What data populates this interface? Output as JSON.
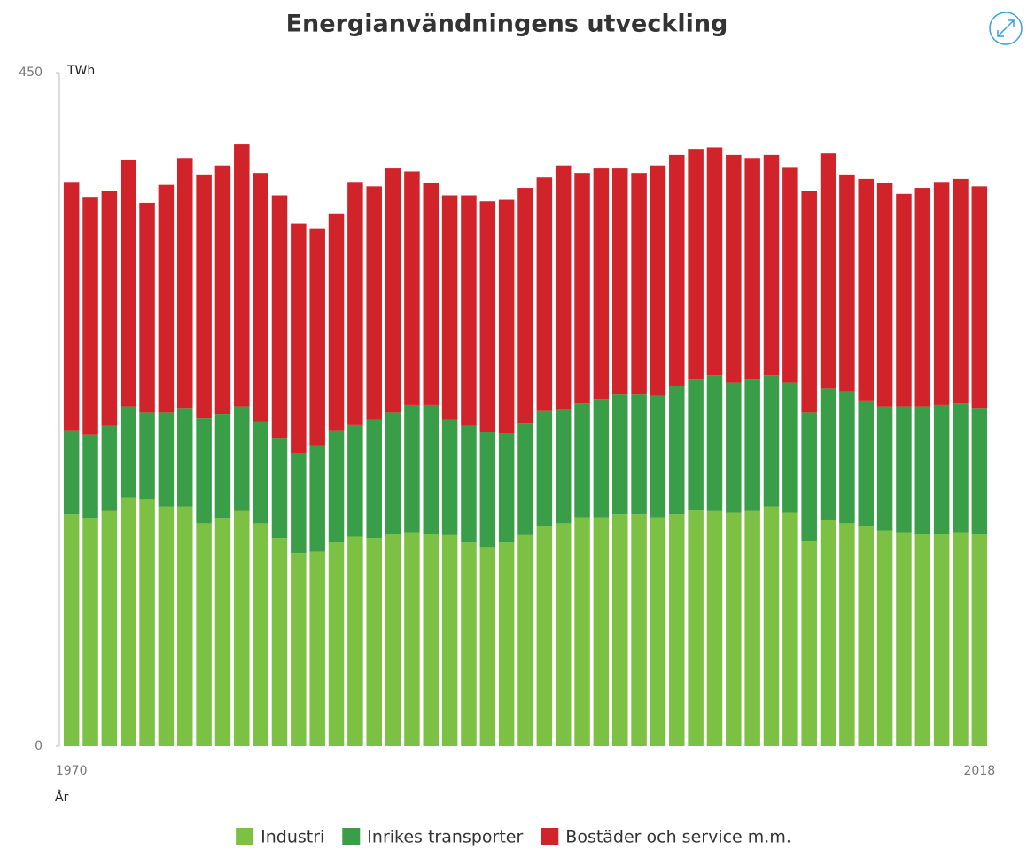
{
  "chart_data": {
    "type": "stacked_bar",
    "title": "Energianvändningens utveckling",
    "ylabel": "TWh",
    "xlabel": "År",
    "categories": [
      "1970",
      null,
      null,
      null,
      null,
      null,
      null,
      null,
      null,
      null,
      null,
      null,
      null,
      null,
      null,
      null,
      null,
      null,
      null,
      null,
      null,
      null,
      null,
      null,
      null,
      null,
      null,
      null,
      null,
      null,
      null,
      null,
      null,
      null,
      null,
      null,
      null,
      null,
      null,
      null,
      null,
      null,
      null,
      null,
      null,
      null,
      null,
      null,
      "2018"
    ],
    "series": [
      {
        "name": "Industri",
        "color": "#7cc144",
        "values": [
          155,
          152,
          157,
          166,
          165,
          160,
          160,
          149,
          152,
          157,
          149,
          139,
          129,
          130,
          136,
          140,
          139,
          142,
          143,
          142,
          141,
          136,
          133,
          136,
          141,
          147,
          149,
          153,
          153,
          155,
          155,
          153,
          155,
          158,
          157,
          156,
          157,
          160,
          156,
          137,
          151,
          149,
          147,
          144,
          143,
          142,
          142,
          143,
          142
        ]
      },
      {
        "name": "Inrikes transporter",
        "color": "#3a9d48",
        "values": [
          56,
          56,
          57,
          61,
          58,
          63,
          66,
          70,
          70,
          70,
          68,
          67,
          67,
          71,
          75,
          75,
          79,
          81,
          85,
          86,
          77,
          78,
          77,
          73,
          75,
          77,
          76,
          76,
          79,
          80,
          80,
          81,
          86,
          87,
          91,
          87,
          88,
          88,
          87,
          86,
          88,
          88,
          84,
          83,
          84,
          85,
          86,
          86,
          84
        ]
      },
      {
        "name": "Bostäder och service m.m.",
        "color": "#d1232a",
        "values": [
          166,
          159,
          157,
          165,
          140,
          152,
          167,
          163,
          166,
          175,
          166,
          162,
          153,
          145,
          145,
          162,
          156,
          163,
          156,
          148,
          150,
          154,
          154,
          156,
          157,
          156,
          163,
          154,
          154,
          151,
          148,
          154,
          154,
          154,
          152,
          152,
          148,
          147,
          144,
          148,
          157,
          145,
          148,
          149,
          142,
          146,
          149,
          150,
          148
        ]
      }
    ],
    "ylim": [
      0,
      450
    ],
    "yticks": [
      0,
      450
    ],
    "grid": false,
    "legend": "bottom"
  }
}
